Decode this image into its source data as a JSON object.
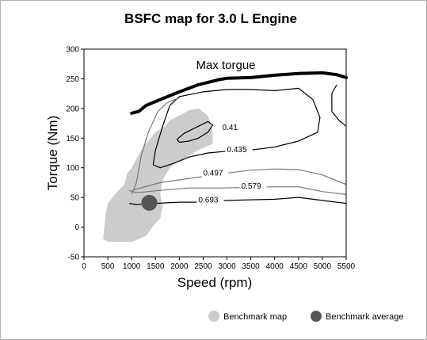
{
  "chart_data": {
    "type": "contour",
    "title": "BSFC map for 3.0 L Engine",
    "xlabel": "Speed (rpm)",
    "ylabel": "Torque (Nm)",
    "xlim": [
      0,
      5500
    ],
    "ylim": [
      -50,
      300
    ],
    "xticks": [
      0,
      500,
      1000,
      1500,
      2000,
      2500,
      3000,
      3500,
      4000,
      4500,
      5000,
      5500
    ],
    "yticks": [
      -50,
      0,
      50,
      100,
      150,
      200,
      250,
      300
    ],
    "annotation": "Max torgue",
    "max_torque_curve": [
      [
        1000,
        192
      ],
      [
        1150,
        195
      ],
      [
        1300,
        205
      ],
      [
        1600,
        215
      ],
      [
        2000,
        228
      ],
      [
        2400,
        240
      ],
      [
        2800,
        248
      ],
      [
        3000,
        251
      ],
      [
        3500,
        252
      ],
      [
        4000,
        256
      ],
      [
        4500,
        259
      ],
      [
        5000,
        260
      ],
      [
        5300,
        257
      ],
      [
        5500,
        252
      ]
    ],
    "contours": [
      {
        "label": "0.41",
        "color": "#000000",
        "points": [
          [
            1950,
            148
          ],
          [
            2100,
            158
          ],
          [
            2350,
            168
          ],
          [
            2600,
            178
          ],
          [
            2700,
            172
          ],
          [
            2600,
            160
          ],
          [
            2400,
            150
          ],
          [
            2200,
            145
          ],
          [
            2000,
            143
          ],
          [
            1950,
            148
          ]
        ]
      },
      {
        "label": "0.435",
        "color": "#000000",
        "points": [
          [
            1450,
            105
          ],
          [
            1500,
            130
          ],
          [
            1650,
            170
          ],
          [
            1800,
            205
          ],
          [
            2000,
            220
          ],
          [
            2500,
            228
          ],
          [
            3000,
            232
          ],
          [
            3500,
            232
          ],
          [
            4000,
            230
          ],
          [
            4500,
            234
          ],
          [
            4800,
            215
          ],
          [
            4950,
            185
          ],
          [
            4900,
            160
          ],
          [
            4500,
            145
          ],
          [
            4000,
            135
          ],
          [
            3500,
            130
          ],
          [
            3000,
            128
          ],
          [
            2600,
            125
          ],
          [
            2200,
            118
          ],
          [
            1900,
            108
          ],
          [
            1600,
            100
          ],
          [
            1450,
            105
          ]
        ]
      },
      {
        "label": "0.497",
        "color": "#777777",
        "points": [
          [
            1000,
            55
          ],
          [
            1100,
            75
          ],
          [
            1200,
            120
          ],
          [
            1350,
            160
          ],
          [
            1550,
            195
          ],
          [
            1750,
            210
          ],
          [
            2000,
            218
          ]
        ]
      },
      {
        "label": "0.497-lower",
        "color": "#777777",
        "points": [
          [
            1050,
            63
          ],
          [
            1600,
            75
          ],
          [
            2200,
            82
          ],
          [
            2900,
            90
          ],
          [
            3500,
            96
          ],
          [
            4000,
            98
          ],
          [
            4500,
            97
          ],
          [
            5000,
            88
          ],
          [
            5500,
            72
          ]
        ]
      },
      {
        "label": "0.579",
        "color": "#777777",
        "points": [
          [
            950,
            62
          ],
          [
            1100,
            58
          ],
          [
            1600,
            62
          ],
          [
            2200,
            66
          ],
          [
            2900,
            66
          ],
          [
            3500,
            67
          ],
          [
            4000,
            68
          ],
          [
            4500,
            68
          ],
          [
            5000,
            60
          ],
          [
            5500,
            55
          ]
        ]
      },
      {
        "label": "0.693",
        "color": "#000000",
        "points": [
          [
            950,
            40
          ],
          [
            1100,
            38
          ],
          [
            1500,
            40
          ],
          [
            2000,
            42
          ],
          [
            2500,
            42
          ],
          [
            3000,
            45
          ],
          [
            3500,
            46
          ],
          [
            4000,
            47
          ],
          [
            4500,
            50
          ],
          [
            5000,
            45
          ],
          [
            5500,
            40
          ]
        ]
      },
      {
        "label": "",
        "color": "#000000",
        "points": [
          [
            5300,
            240
          ],
          [
            5200,
            225
          ],
          [
            5200,
            195
          ],
          [
            5350,
            180
          ],
          [
            5500,
            170
          ]
        ]
      }
    ],
    "contour_labels": [
      {
        "text": "0.41",
        "x": 2900,
        "y": 165
      },
      {
        "text": "0.435",
        "x": 3000,
        "y": 128
      },
      {
        "text": "0.497",
        "x": 2500,
        "y": 88
      },
      {
        "text": "0.579",
        "x": 3300,
        "y": 66
      },
      {
        "text": "0.693",
        "x": 2400,
        "y": 43
      }
    ],
    "benchmark_map_region": [
      [
        400,
        -20
      ],
      [
        450,
        20
      ],
      [
        500,
        40
      ],
      [
        700,
        60
      ],
      [
        850,
        72
      ],
      [
        900,
        90
      ],
      [
        1000,
        100
      ],
      [
        1200,
        130
      ],
      [
        1350,
        145
      ],
      [
        1500,
        160
      ],
      [
        1700,
        170
      ],
      [
        1800,
        180
      ],
      [
        2050,
        190
      ],
      [
        2200,
        197
      ],
      [
        2400,
        200
      ],
      [
        2600,
        188
      ],
      [
        2700,
        160
      ],
      [
        2700,
        140
      ],
      [
        2400,
        130
      ],
      [
        2200,
        120
      ],
      [
        2000,
        112
      ],
      [
        1800,
        100
      ],
      [
        1650,
        80
      ],
      [
        1600,
        55
      ],
      [
        1650,
        35
      ],
      [
        1600,
        15
      ],
      [
        1450,
        2
      ],
      [
        1300,
        -15
      ],
      [
        1000,
        -25
      ],
      [
        500,
        -25
      ],
      [
        400,
        -20
      ]
    ],
    "benchmark_average": {
      "x": 1370,
      "y": 41
    },
    "legend": [
      {
        "label": "Benchmark map",
        "color": "#cccccc"
      },
      {
        "label": "Benchmark average",
        "color": "#555555"
      }
    ]
  }
}
